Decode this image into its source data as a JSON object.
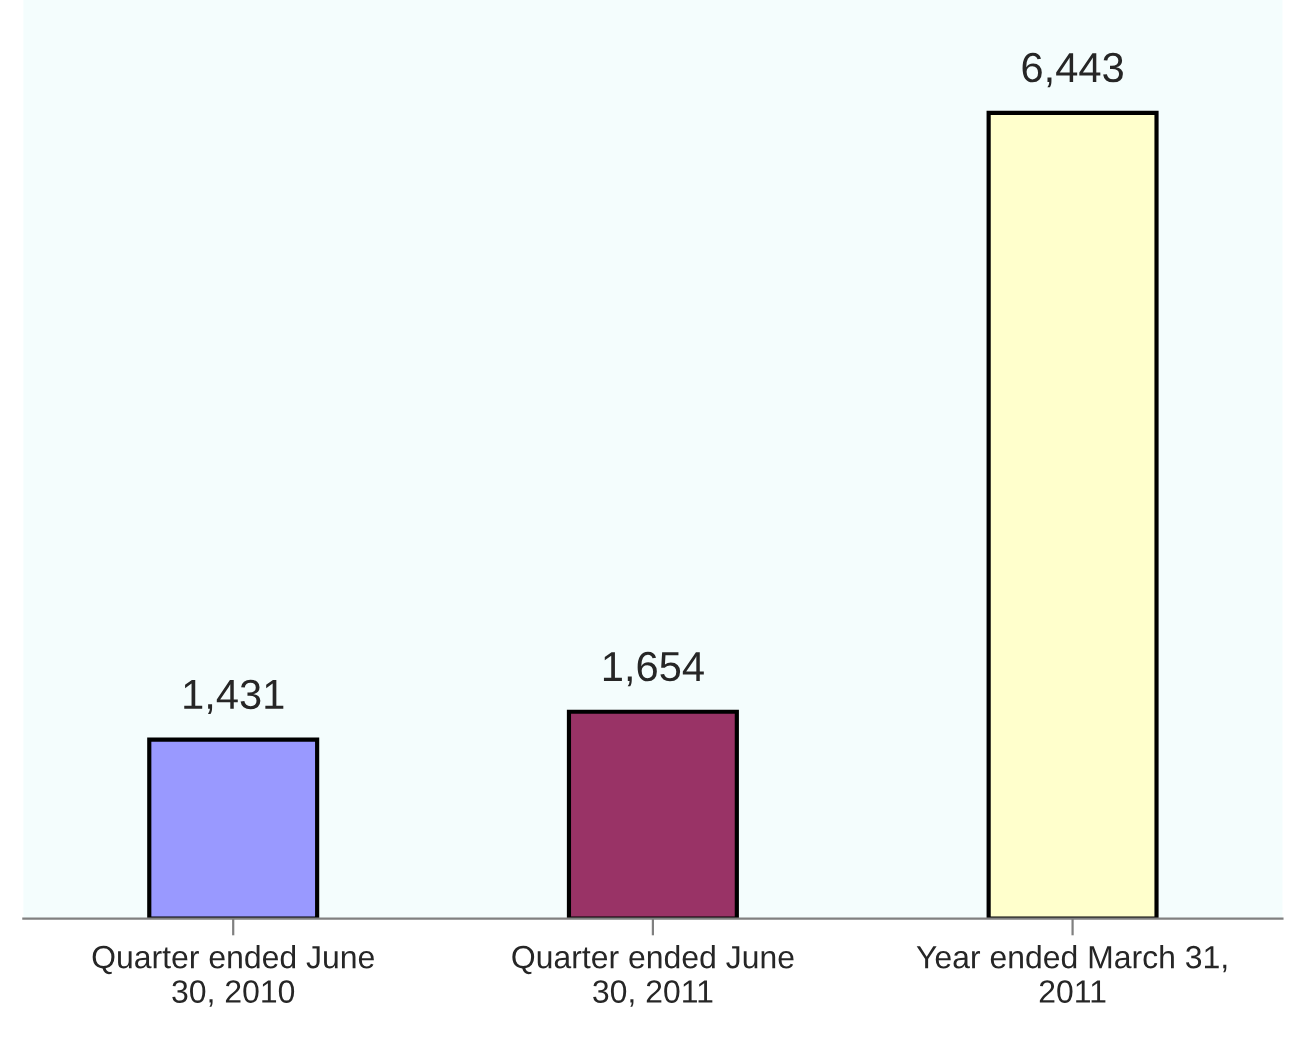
{
  "chart_data": {
    "type": "bar",
    "categories": [
      "Quarter ended June\n30, 2010",
      "Quarter ended June\n30, 2011",
      "Year ended March 31,\n2011"
    ],
    "values": [
      1431,
      1654,
      6443
    ],
    "colors": [
      "#9999ff",
      "#993366",
      "#ffffcc"
    ],
    "data_labels": true,
    "value_labels": [
      "1,431",
      "1,654",
      "6,443"
    ],
    "grid": false,
    "legend": false
  }
}
